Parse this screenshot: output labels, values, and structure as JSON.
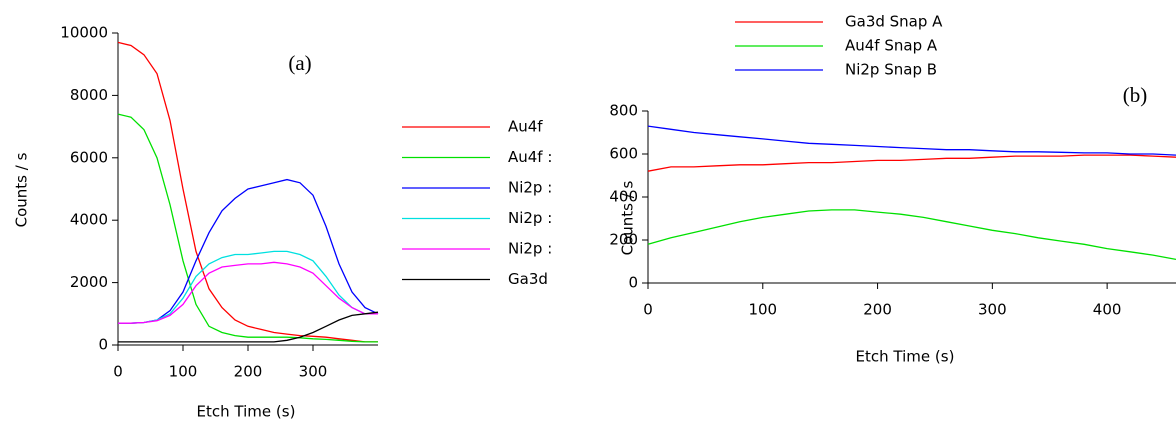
{
  "chart_data": [
    {
      "type": "line",
      "annotation": "(a)",
      "x_label": "Etch Time (s)",
      "y_label": "Counts / s",
      "xlim": [
        0,
        400
      ],
      "xticks": [
        0,
        100,
        200,
        300
      ],
      "ylim": [
        0,
        10000
      ],
      "yticks": [
        0,
        2000,
        4000,
        6000,
        8000,
        10000
      ],
      "legend": "right",
      "x": [
        0,
        20,
        40,
        60,
        80,
        100,
        120,
        140,
        160,
        180,
        200,
        220,
        240,
        260,
        280,
        300,
        320,
        340,
        360,
        380,
        400
      ],
      "series": [
        {
          "name": "Au4f",
          "color": "#ff0000",
          "values": [
            9700,
            9600,
            9300,
            8700,
            7200,
            5000,
            3000,
            1800,
            1200,
            800,
            600,
            500,
            400,
            350,
            300,
            280,
            250,
            200,
            150,
            100,
            100
          ]
        },
        {
          "name": "Au4f :",
          "color": "#00e000",
          "values": [
            7400,
            7300,
            6900,
            6000,
            4500,
            2700,
            1300,
            600,
            400,
            300,
            250,
            250,
            250,
            250,
            230,
            200,
            180,
            150,
            120,
            100,
            100
          ]
        },
        {
          "name": "Ni2p :",
          "color": "#0000ff",
          "values": [
            700,
            700,
            720,
            800,
            1100,
            1700,
            2700,
            3600,
            4300,
            4700,
            5000,
            5100,
            5200,
            5300,
            5200,
            4800,
            3800,
            2600,
            1700,
            1200,
            1000
          ]
        },
        {
          "name": "Ni2p :",
          "color": "#00e0e0",
          "values": [
            700,
            700,
            720,
            800,
            1000,
            1500,
            2200,
            2600,
            2800,
            2900,
            2900,
            2950,
            3000,
            3000,
            2900,
            2700,
            2200,
            1600,
            1200,
            1000,
            1000
          ]
        },
        {
          "name": "Ni2p :",
          "color": "#ff00ff",
          "values": [
            700,
            700,
            720,
            780,
            950,
            1300,
            1900,
            2300,
            2500,
            2550,
            2600,
            2600,
            2650,
            2600,
            2500,
            2300,
            1900,
            1500,
            1200,
            1000,
            1000
          ]
        },
        {
          "name": "Ga3d",
          "color": "#000000",
          "values": [
            100,
            100,
            100,
            100,
            100,
            100,
            100,
            100,
            100,
            100,
            100,
            100,
            100,
            150,
            250,
            400,
            600,
            800,
            950,
            1000,
            1050
          ]
        }
      ]
    },
    {
      "type": "line",
      "annotation": "(b)",
      "x_label": "Etch Time (s)",
      "y_label": "Counts / s",
      "xlim": [
        0,
        460
      ],
      "xticks": [
        0,
        100,
        200,
        300,
        400
      ],
      "ylim": [
        0,
        800
      ],
      "yticks": [
        0,
        200,
        400,
        600,
        800
      ],
      "legend": "top",
      "x": [
        0,
        20,
        40,
        60,
        80,
        100,
        120,
        140,
        160,
        180,
        200,
        220,
        240,
        260,
        280,
        300,
        320,
        340,
        360,
        380,
        400,
        420,
        440,
        460
      ],
      "series": [
        {
          "name": "Ga3d Snap A",
          "color": "#ff0000",
          "values": [
            520,
            540,
            540,
            545,
            550,
            550,
            555,
            560,
            560,
            565,
            570,
            570,
            575,
            580,
            580,
            585,
            590,
            590,
            590,
            595,
            595,
            595,
            590,
            585
          ]
        },
        {
          "name": "Au4f Snap A",
          "color": "#00e000",
          "values": [
            180,
            210,
            235,
            260,
            285,
            305,
            320,
            335,
            340,
            340,
            330,
            320,
            305,
            285,
            265,
            245,
            230,
            210,
            195,
            180,
            160,
            145,
            130,
            110
          ]
        },
        {
          "name": "Ni2p Snap B",
          "color": "#0000ff",
          "values": [
            730,
            715,
            700,
            690,
            680,
            670,
            660,
            650,
            645,
            640,
            635,
            630,
            625,
            620,
            620,
            615,
            610,
            610,
            608,
            605,
            605,
            600,
            600,
            595
          ]
        }
      ]
    }
  ]
}
